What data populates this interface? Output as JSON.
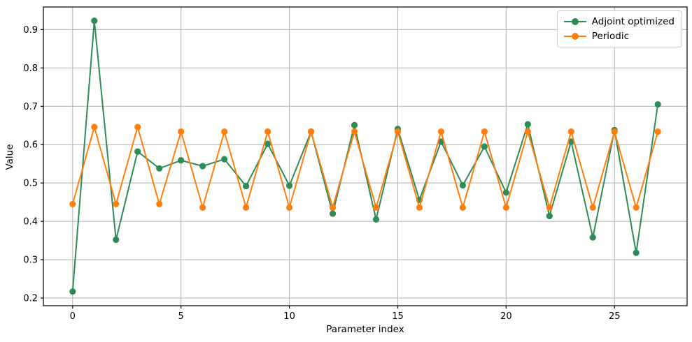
{
  "figure": {
    "xlabel": "Parameter index",
    "ylabel": "Value",
    "background": "#ffffff",
    "grid_color": "#b0b0b0",
    "spine_color": "#000000",
    "legend": {
      "position": "upper right",
      "items": [
        {
          "label": "Adjoint optimized",
          "color": "#2e8b57"
        },
        {
          "label": "Periodic",
          "color": "#ff7f0e"
        }
      ]
    }
  },
  "chart_data": {
    "type": "line",
    "title": "",
    "xlabel": "Parameter index",
    "ylabel": "Value",
    "x": [
      0,
      1,
      2,
      3,
      4,
      5,
      6,
      7,
      8,
      9,
      10,
      11,
      12,
      13,
      14,
      15,
      16,
      17,
      18,
      19,
      20,
      21,
      22,
      23,
      24,
      25,
      26,
      27
    ],
    "series": [
      {
        "name": "Adjoint optimized",
        "color": "#2e8b57",
        "marker": "circle",
        "values": [
          0.217,
          0.923,
          0.352,
          0.582,
          0.538,
          0.559,
          0.544,
          0.562,
          0.492,
          0.602,
          0.493,
          0.634,
          0.42,
          0.651,
          0.405,
          0.641,
          0.456,
          0.608,
          0.494,
          0.595,
          0.475,
          0.653,
          0.414,
          0.608,
          0.358,
          0.638,
          0.318,
          0.705
        ]
      },
      {
        "name": "Periodic",
        "color": "#ff7f0e",
        "marker": "circle",
        "values": [
          0.445,
          0.646,
          0.445,
          0.646,
          0.445,
          0.634,
          0.436,
          0.634,
          0.436,
          0.634,
          0.436,
          0.634,
          0.436,
          0.634,
          0.436,
          0.634,
          0.436,
          0.634,
          0.436,
          0.634,
          0.436,
          0.634,
          0.436,
          0.634,
          0.436,
          0.634,
          0.436,
          0.634
        ]
      }
    ],
    "xlim": [
      -1.35,
      28.35
    ],
    "ylim": [
      0.18,
      0.959
    ],
    "xticks": [
      0,
      5,
      10,
      15,
      20,
      25
    ],
    "yticks": [
      0.2,
      0.3,
      0.4,
      0.5,
      0.6,
      0.7,
      0.8,
      0.9
    ],
    "grid": true,
    "legend_position": "upper right"
  }
}
